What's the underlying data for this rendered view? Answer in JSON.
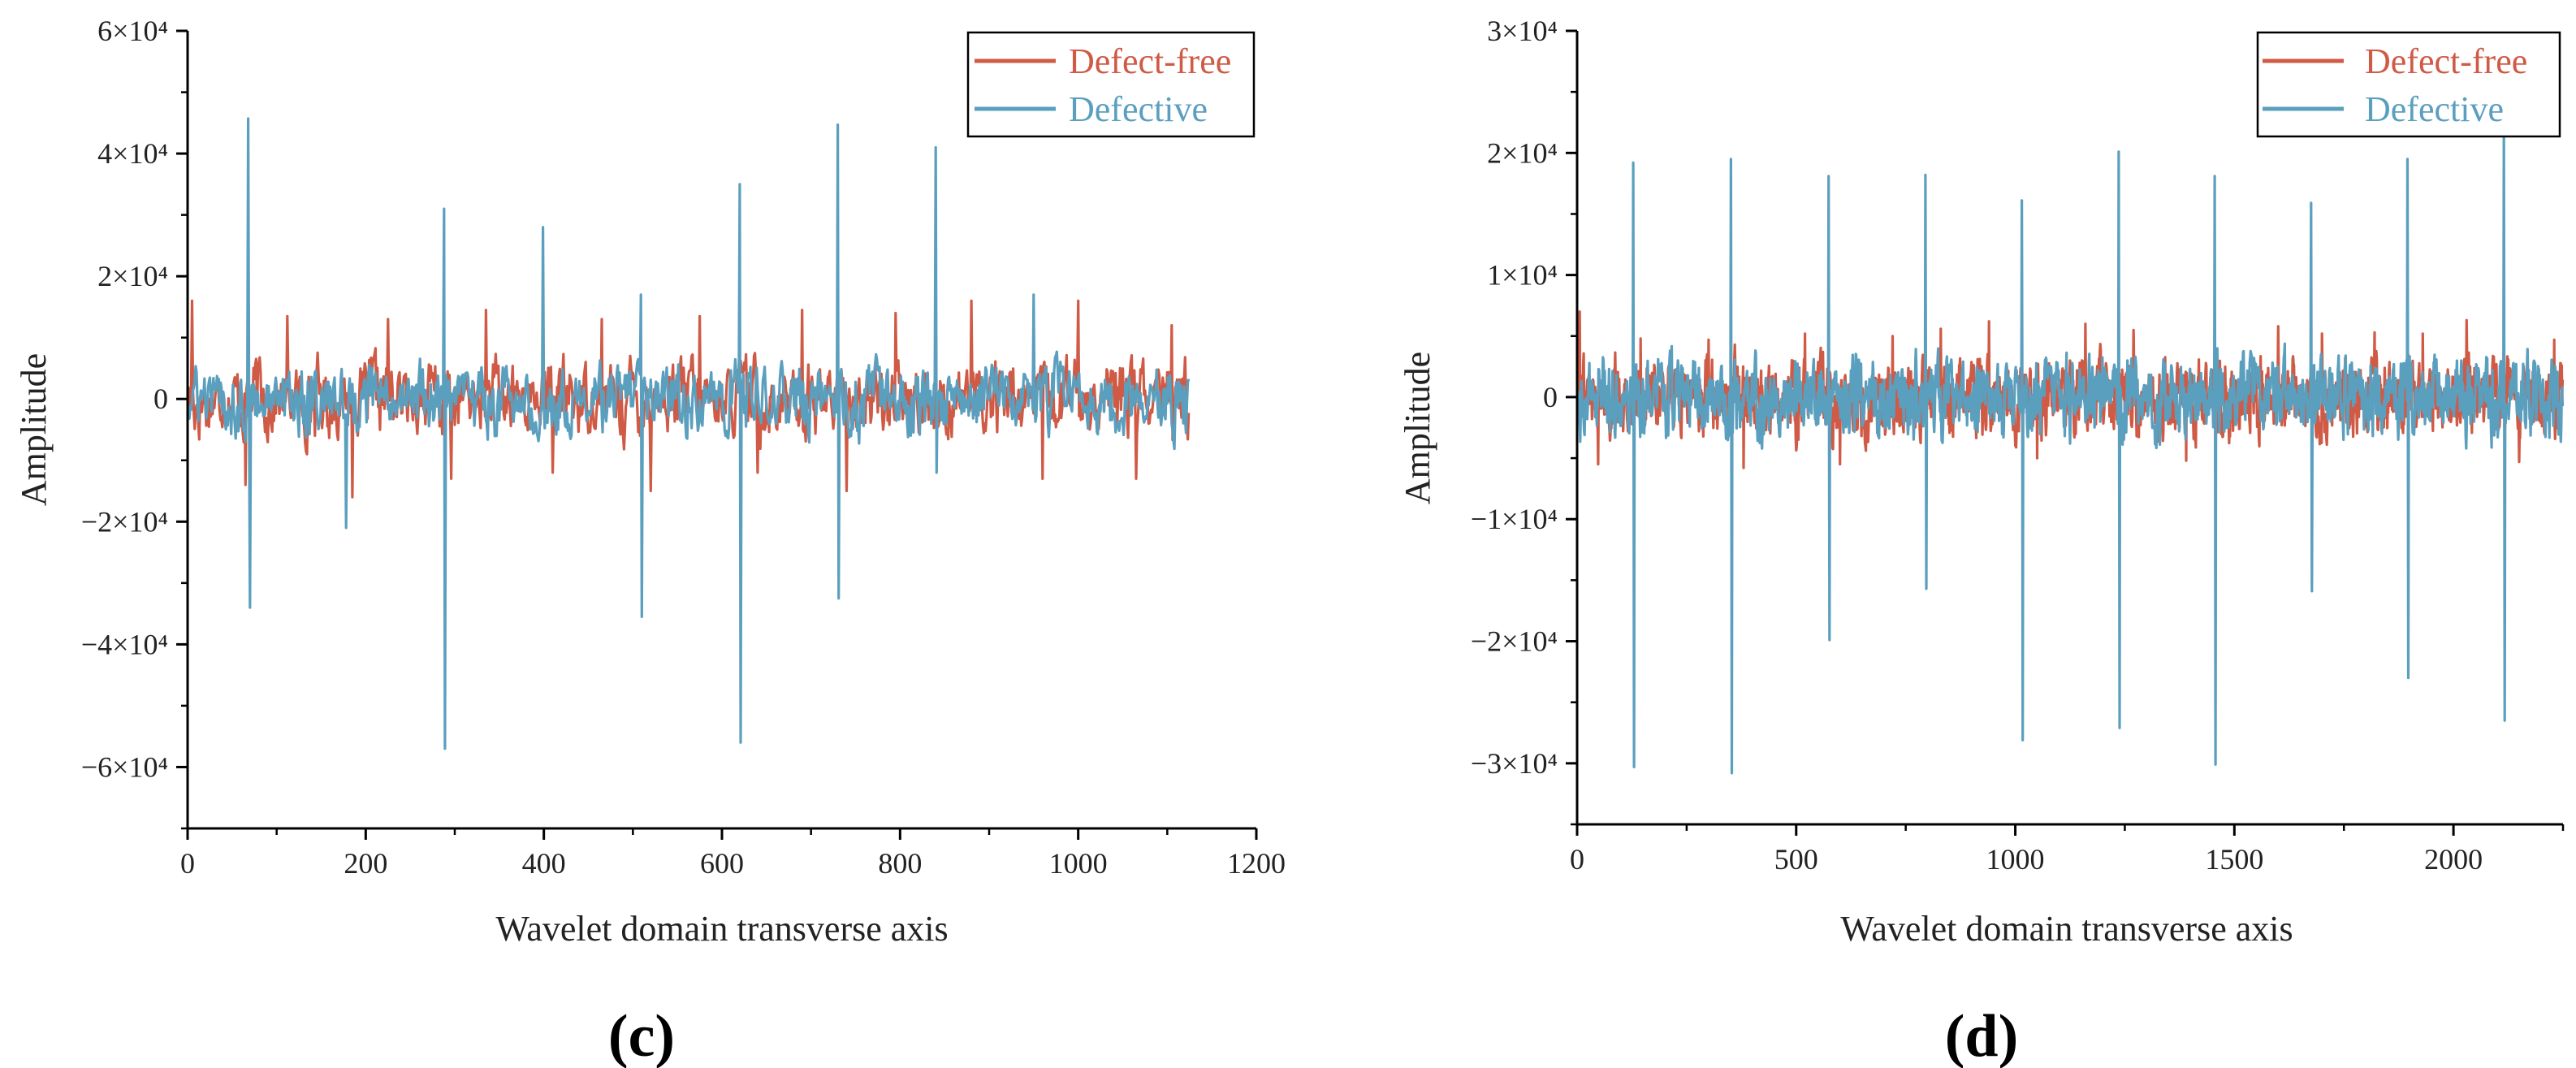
{
  "panels": [
    {
      "label": "(c)",
      "chart_data": {
        "type": "line",
        "title": "",
        "xlabel": "Wavelet domain transverse axis",
        "ylabel": "Amplitude",
        "xlim": [
          0,
          1200
        ],
        "ylim": [
          -70000,
          60000
        ],
        "x_ticks": [
          0,
          200,
          400,
          600,
          800,
          1000,
          1200
        ],
        "y_ticks": [
          -60000,
          -40000,
          -20000,
          0,
          20000,
          40000,
          60000
        ],
        "y_tick_labels": [
          "−6×10⁴",
          "−4×10⁴",
          "−2×10⁴",
          "0",
          "2×10⁴",
          "4×10⁴",
          "6×10⁴"
        ],
        "legend": [
          "Defect-free",
          "Defective"
        ],
        "legend_position": "top-right",
        "n_points": 1125,
        "series": [
          {
            "name": "Defect-free",
            "color": "#cf5a45",
            "noise_amplitude": 7000,
            "peaks": [
              {
                "x": 5,
                "y": 16000
              },
              {
                "x": 65,
                "y": -14000
              },
              {
                "x": 112,
                "y": 13500
              },
              {
                "x": 185,
                "y": -16000
              },
              {
                "x": 225,
                "y": 13000
              },
              {
                "x": 296,
                "y": -13000
              },
              {
                "x": 335,
                "y": 14500
              },
              {
                "x": 410,
                "y": -12000
              },
              {
                "x": 465,
                "y": 13000
              },
              {
                "x": 520,
                "y": -15000
              },
              {
                "x": 575,
                "y": 13500
              },
              {
                "x": 640,
                "y": -12000
              },
              {
                "x": 690,
                "y": 14500
              },
              {
                "x": 740,
                "y": -15000
              },
              {
                "x": 795,
                "y": 14000
              },
              {
                "x": 880,
                "y": 16000
              },
              {
                "x": 960,
                "y": -13000
              },
              {
                "x": 1000,
                "y": 16000
              },
              {
                "x": 1065,
                "y": -13000
              },
              {
                "x": 1105,
                "y": 12000
              }
            ]
          },
          {
            "name": "Defective",
            "color": "#5b9fbf",
            "noise_amplitude": 6500,
            "peaks": [
              {
                "x": 68,
                "y": 45700
              },
              {
                "x": 70,
                "y": -34000
              },
              {
                "x": 178,
                "y": -21000
              },
              {
                "x": 288,
                "y": 31000
              },
              {
                "x": 289,
                "y": -57000
              },
              {
                "x": 399,
                "y": 28000
              },
              {
                "x": 509,
                "y": 17000
              },
              {
                "x": 510,
                "y": -35500
              },
              {
                "x": 620,
                "y": 35000
              },
              {
                "x": 621,
                "y": -56000
              },
              {
                "x": 730,
                "y": 44700
              },
              {
                "x": 731,
                "y": -32500
              },
              {
                "x": 840,
                "y": 41000
              },
              {
                "x": 841,
                "y": -12000
              },
              {
                "x": 950,
                "y": 17000
              }
            ]
          }
        ]
      }
    },
    {
      "label": "(d)",
      "chart_data": {
        "type": "line",
        "title": "",
        "xlabel": "Wavelet domain transverse axis",
        "ylabel": "Amplitude",
        "xlim": [
          0,
          2250
        ],
        "ylim": [
          -35000,
          30000
        ],
        "x_ticks": [
          0,
          500,
          1000,
          1500,
          2000
        ],
        "y_ticks": [
          -30000,
          -20000,
          -10000,
          0,
          10000,
          20000,
          30000
        ],
        "y_tick_labels": [
          "−3×10⁴",
          "−2×10⁴",
          "−1×10⁴",
          "0",
          "1×10⁴",
          "2×10⁴",
          "3×10⁴"
        ],
        "legend": [
          "Defect-free",
          "Defective"
        ],
        "legend_position": "top-right",
        "n_points": 2250,
        "series": [
          {
            "name": "Defect-free",
            "color": "#cf5a45",
            "noise_amplitude": 3500,
            "peaks": [
              {
                "x": 6,
                "y": 7000
              },
              {
                "x": 48,
                "y": -5500
              },
              {
                "x": 145,
                "y": 4800
              },
              {
                "x": 300,
                "y": 4700
              },
              {
                "x": 380,
                "y": -5800
              },
              {
                "x": 520,
                "y": 5200
              },
              {
                "x": 600,
                "y": -5500
              },
              {
                "x": 720,
                "y": 5000
              },
              {
                "x": 830,
                "y": 5600
              },
              {
                "x": 940,
                "y": 6200
              },
              {
                "x": 1050,
                "y": -5000
              },
              {
                "x": 1160,
                "y": 6000
              },
              {
                "x": 1270,
                "y": 5500
              },
              {
                "x": 1390,
                "y": -5200
              },
              {
                "x": 1600,
                "y": 5800
              },
              {
                "x": 1700,
                "y": 5200
              },
              {
                "x": 1820,
                "y": 5300
              },
              {
                "x": 1930,
                "y": 5200
              },
              {
                "x": 2030,
                "y": 6300
              },
              {
                "x": 2150,
                "y": -5300
              },
              {
                "x": 2230,
                "y": 4700
              }
            ]
          },
          {
            "name": "Defective",
            "color": "#5b9fbf",
            "noise_amplitude": 3500,
            "peaks": [
              {
                "x": 128,
                "y": 19200
              },
              {
                "x": 130,
                "y": -30300
              },
              {
                "x": 351,
                "y": 19500
              },
              {
                "x": 353,
                "y": -30800
              },
              {
                "x": 574,
                "y": 18100
              },
              {
                "x": 576,
                "y": -19900
              },
              {
                "x": 795,
                "y": 18200
              },
              {
                "x": 797,
                "y": -15700
              },
              {
                "x": 1015,
                "y": 16100
              },
              {
                "x": 1017,
                "y": -28100
              },
              {
                "x": 1236,
                "y": 20100
              },
              {
                "x": 1238,
                "y": -27100
              },
              {
                "x": 1455,
                "y": 18100
              },
              {
                "x": 1457,
                "y": -30100
              },
              {
                "x": 1675,
                "y": 15900
              },
              {
                "x": 1677,
                "y": -15900
              },
              {
                "x": 1895,
                "y": 19500
              },
              {
                "x": 1897,
                "y": -23000
              },
              {
                "x": 2115,
                "y": 21700
              },
              {
                "x": 2117,
                "y": -26500
              }
            ]
          }
        ]
      }
    }
  ]
}
